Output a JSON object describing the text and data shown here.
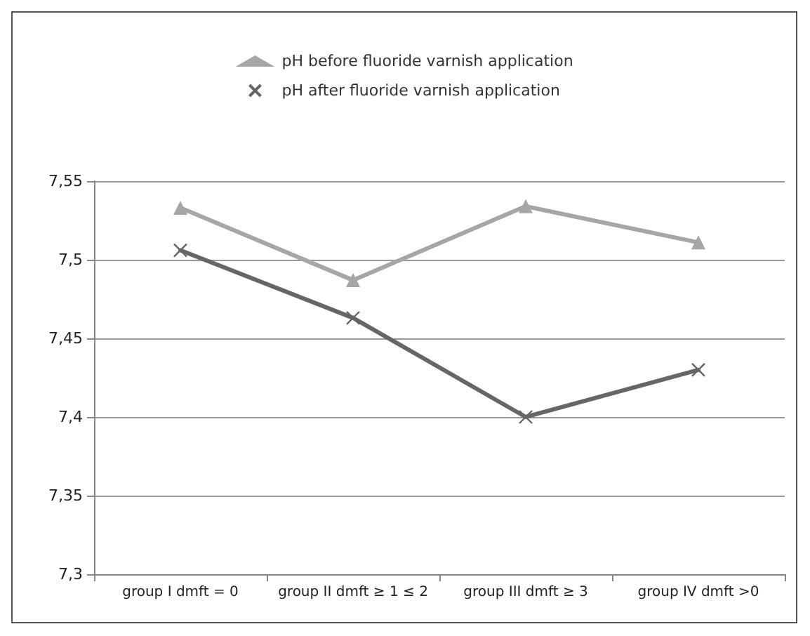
{
  "chart_data": {
    "type": "line",
    "categories": [
      "group I dmft = 0",
      "group II dmft ≥ 1 ≤ 2",
      "group III dmft ≥ 3",
      "group IV dmft >0"
    ],
    "series": [
      {
        "name": "pH before fluoride varnish application",
        "color": "#a6a6a6",
        "marker": "triangle",
        "values": [
          7.533,
          7.487,
          7.534,
          7.511
        ]
      },
      {
        "name": "pH after fluoride varnish application",
        "color": "#666666",
        "marker": "cross",
        "values": [
          7.506,
          7.463,
          7.4,
          7.43
        ]
      }
    ],
    "ylim": [
      7.3,
      7.55
    ],
    "yticks": [
      {
        "value": 7.3,
        "label": "7,3"
      },
      {
        "value": 7.35,
        "label": "7,35"
      },
      {
        "value": 7.4,
        "label": "7,4"
      },
      {
        "value": 7.45,
        "label": "7,45"
      },
      {
        "value": 7.5,
        "label": "7,5"
      },
      {
        "value": 7.55,
        "label": "7,55"
      }
    ],
    "grid": "y",
    "legend": "top",
    "line_style": "solid"
  }
}
